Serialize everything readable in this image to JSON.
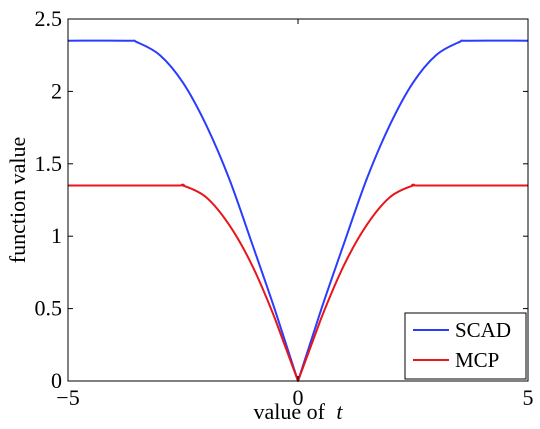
{
  "chart_data": {
    "type": "line",
    "title": "",
    "xlabel": "value of",
    "xlabel_var": "t",
    "ylabel": "function value",
    "xlim": [
      -5,
      5
    ],
    "ylim": [
      0,
      2.5
    ],
    "xticks": [
      -5,
      0,
      5
    ],
    "xtick_labels": [
      "−5",
      "0",
      "5"
    ],
    "yticks": [
      0,
      0.5,
      1,
      1.5,
      2,
      2.5
    ],
    "ytick_labels": [
      "0",
      "0.5",
      "1",
      "1.5",
      "2",
      "2.5"
    ],
    "grid": false,
    "legend_position": "bottom-right",
    "series": [
      {
        "name": "SCAD",
        "color": "#2a3cff",
        "x": [
          -5,
          -3.7,
          -3.5,
          -3.0,
          -2.5,
          -2.0,
          -1.5,
          -1.0,
          -0.5,
          0,
          0.5,
          1.0,
          1.5,
          2.0,
          2.5,
          3.0,
          3.5,
          3.7,
          5
        ],
        "values": [
          2.35,
          2.35,
          2.34,
          2.25,
          2.06,
          1.77,
          1.4,
          0.95,
          0.49,
          0.0,
          0.49,
          0.95,
          1.4,
          1.77,
          2.06,
          2.25,
          2.34,
          2.35,
          2.35
        ]
      },
      {
        "name": "MCP",
        "color": "#e8151b",
        "x": [
          -5,
          -2.7,
          -2.5,
          -2.0,
          -1.5,
          -1.0,
          -0.5,
          0,
          0.5,
          1.0,
          1.5,
          2.0,
          2.5,
          2.7,
          5
        ],
        "values": [
          1.35,
          1.35,
          1.35,
          1.27,
          1.08,
          0.8,
          0.43,
          0.0,
          0.43,
          0.8,
          1.08,
          1.27,
          1.35,
          1.35,
          1.35
        ]
      }
    ]
  }
}
